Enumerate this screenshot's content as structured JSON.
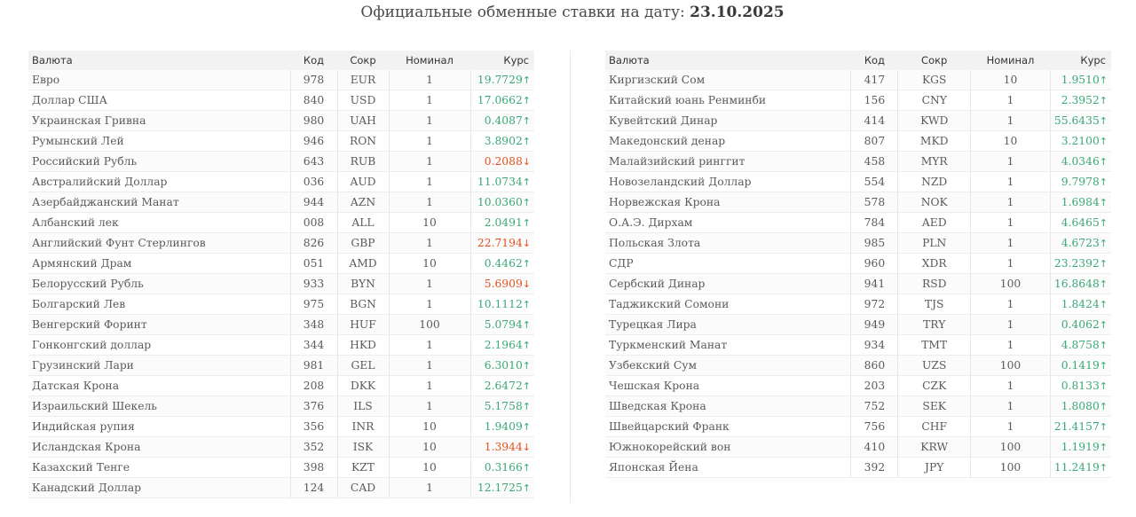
{
  "header": {
    "title_prefix": "Официальные обменные ставки на дату: ",
    "date": "23.10.2025"
  },
  "columns": {
    "name": "Валюта",
    "code": "Код",
    "abbr": "Сокр",
    "nominal": "Номинал",
    "rate": "Курс"
  },
  "colors": {
    "up": "#3aa877",
    "down": "#e2521f"
  },
  "left_rows": [
    {
      "name": "Евро",
      "code": "978",
      "abbr": "EUR",
      "nominal": "1",
      "rate": "19.7729",
      "dir": "up"
    },
    {
      "name": "Доллар США",
      "code": "840",
      "abbr": "USD",
      "nominal": "1",
      "rate": "17.0662",
      "dir": "up"
    },
    {
      "name": "Украинская Гривна",
      "code": "980",
      "abbr": "UAH",
      "nominal": "1",
      "rate": "0.4087",
      "dir": "up"
    },
    {
      "name": "Румынский Лей",
      "code": "946",
      "abbr": "RON",
      "nominal": "1",
      "rate": "3.8902",
      "dir": "up"
    },
    {
      "name": "Российский Рубль",
      "code": "643",
      "abbr": "RUB",
      "nominal": "1",
      "rate": "0.2088",
      "dir": "down"
    },
    {
      "name": "Австралийский Доллар",
      "code": "036",
      "abbr": "AUD",
      "nominal": "1",
      "rate": "11.0734",
      "dir": "up"
    },
    {
      "name": "Азербайджанский Манат",
      "code": "944",
      "abbr": "AZN",
      "nominal": "1",
      "rate": "10.0360",
      "dir": "up"
    },
    {
      "name": "Албанский лек",
      "code": "008",
      "abbr": "ALL",
      "nominal": "10",
      "rate": "2.0491",
      "dir": "up"
    },
    {
      "name": "Английский Фунт Стерлингов",
      "code": "826",
      "abbr": "GBP",
      "nominal": "1",
      "rate": "22.7194",
      "dir": "down"
    },
    {
      "name": "Армянский Драм",
      "code": "051",
      "abbr": "AMD",
      "nominal": "10",
      "rate": "0.4462",
      "dir": "up"
    },
    {
      "name": "Белорусский Рубль",
      "code": "933",
      "abbr": "BYN",
      "nominal": "1",
      "rate": "5.6909",
      "dir": "down"
    },
    {
      "name": "Болгарский Лев",
      "code": "975",
      "abbr": "BGN",
      "nominal": "1",
      "rate": "10.1112",
      "dir": "up"
    },
    {
      "name": "Венгерский Форинт",
      "code": "348",
      "abbr": "HUF",
      "nominal": "100",
      "rate": "5.0794",
      "dir": "up"
    },
    {
      "name": "Гонконгский доллар",
      "code": "344",
      "abbr": "HKD",
      "nominal": "1",
      "rate": "2.1964",
      "dir": "up"
    },
    {
      "name": "Грузинский Лари",
      "code": "981",
      "abbr": "GEL",
      "nominal": "1",
      "rate": "6.3010",
      "dir": "up"
    },
    {
      "name": "Датская Крона",
      "code": "208",
      "abbr": "DKK",
      "nominal": "1",
      "rate": "2.6472",
      "dir": "up"
    },
    {
      "name": "Израильский Шекель",
      "code": "376",
      "abbr": "ILS",
      "nominal": "1",
      "rate": "5.1758",
      "dir": "up"
    },
    {
      "name": "Индийская рупия",
      "code": "356",
      "abbr": "INR",
      "nominal": "10",
      "rate": "1.9409",
      "dir": "up"
    },
    {
      "name": "Исландская Крона",
      "code": "352",
      "abbr": "ISK",
      "nominal": "10",
      "rate": "1.3944",
      "dir": "down"
    },
    {
      "name": "Казахский Тенге",
      "code": "398",
      "abbr": "KZT",
      "nominal": "10",
      "rate": "0.3166",
      "dir": "up"
    },
    {
      "name": "Канадский Доллар",
      "code": "124",
      "abbr": "CAD",
      "nominal": "1",
      "rate": "12.1725",
      "dir": "up"
    }
  ],
  "right_rows": [
    {
      "name": "Киргизский Сом",
      "code": "417",
      "abbr": "KGS",
      "nominal": "10",
      "rate": "1.9510",
      "dir": "up"
    },
    {
      "name": "Китайский юань Ренминби",
      "code": "156",
      "abbr": "CNY",
      "nominal": "1",
      "rate": "2.3952",
      "dir": "up"
    },
    {
      "name": "Кувейтский Динар",
      "code": "414",
      "abbr": "KWD",
      "nominal": "1",
      "rate": "55.6435",
      "dir": "up"
    },
    {
      "name": "Македонский денар",
      "code": "807",
      "abbr": "MKD",
      "nominal": "10",
      "rate": "3.2100",
      "dir": "up"
    },
    {
      "name": "Малайзийский ринггит",
      "code": "458",
      "abbr": "MYR",
      "nominal": "1",
      "rate": "4.0346",
      "dir": "up"
    },
    {
      "name": "Новозеландский Доллар",
      "code": "554",
      "abbr": "NZD",
      "nominal": "1",
      "rate": "9.7978",
      "dir": "up"
    },
    {
      "name": "Норвежская Крона",
      "code": "578",
      "abbr": "NOK",
      "nominal": "1",
      "rate": "1.6984",
      "dir": "up"
    },
    {
      "name": "О.А.Э. Дирхам",
      "code": "784",
      "abbr": "AED",
      "nominal": "1",
      "rate": "4.6465",
      "dir": "up"
    },
    {
      "name": "Польская Злота",
      "code": "985",
      "abbr": "PLN",
      "nominal": "1",
      "rate": "4.6723",
      "dir": "up"
    },
    {
      "name": "СДР",
      "code": "960",
      "abbr": "XDR",
      "nominal": "1",
      "rate": "23.2392",
      "dir": "up"
    },
    {
      "name": "Сербский Динар",
      "code": "941",
      "abbr": "RSD",
      "nominal": "100",
      "rate": "16.8648",
      "dir": "up"
    },
    {
      "name": "Таджикский Сомони",
      "code": "972",
      "abbr": "TJS",
      "nominal": "1",
      "rate": "1.8424",
      "dir": "up"
    },
    {
      "name": "Турецкая Лира",
      "code": "949",
      "abbr": "TRY",
      "nominal": "1",
      "rate": "0.4062",
      "dir": "up"
    },
    {
      "name": "Туркменский Манат",
      "code": "934",
      "abbr": "TMT",
      "nominal": "1",
      "rate": "4.8758",
      "dir": "up"
    },
    {
      "name": "Узбекский Сум",
      "code": "860",
      "abbr": "UZS",
      "nominal": "100",
      "rate": "0.1419",
      "dir": "up"
    },
    {
      "name": "Чешская Крона",
      "code": "203",
      "abbr": "CZK",
      "nominal": "1",
      "rate": "0.8133",
      "dir": "up"
    },
    {
      "name": "Шведская Крона",
      "code": "752",
      "abbr": "SEK",
      "nominal": "1",
      "rate": "1.8080",
      "dir": "up"
    },
    {
      "name": "Швейцарский Франк",
      "code": "756",
      "abbr": "CHF",
      "nominal": "1",
      "rate": "21.4157",
      "dir": "up"
    },
    {
      "name": "Южнокорейский вон",
      "code": "410",
      "abbr": "KRW",
      "nominal": "100",
      "rate": "1.1919",
      "dir": "up"
    },
    {
      "name": "Японская Йена",
      "code": "392",
      "abbr": "JPY",
      "nominal": "100",
      "rate": "11.2419",
      "dir": "up"
    }
  ]
}
